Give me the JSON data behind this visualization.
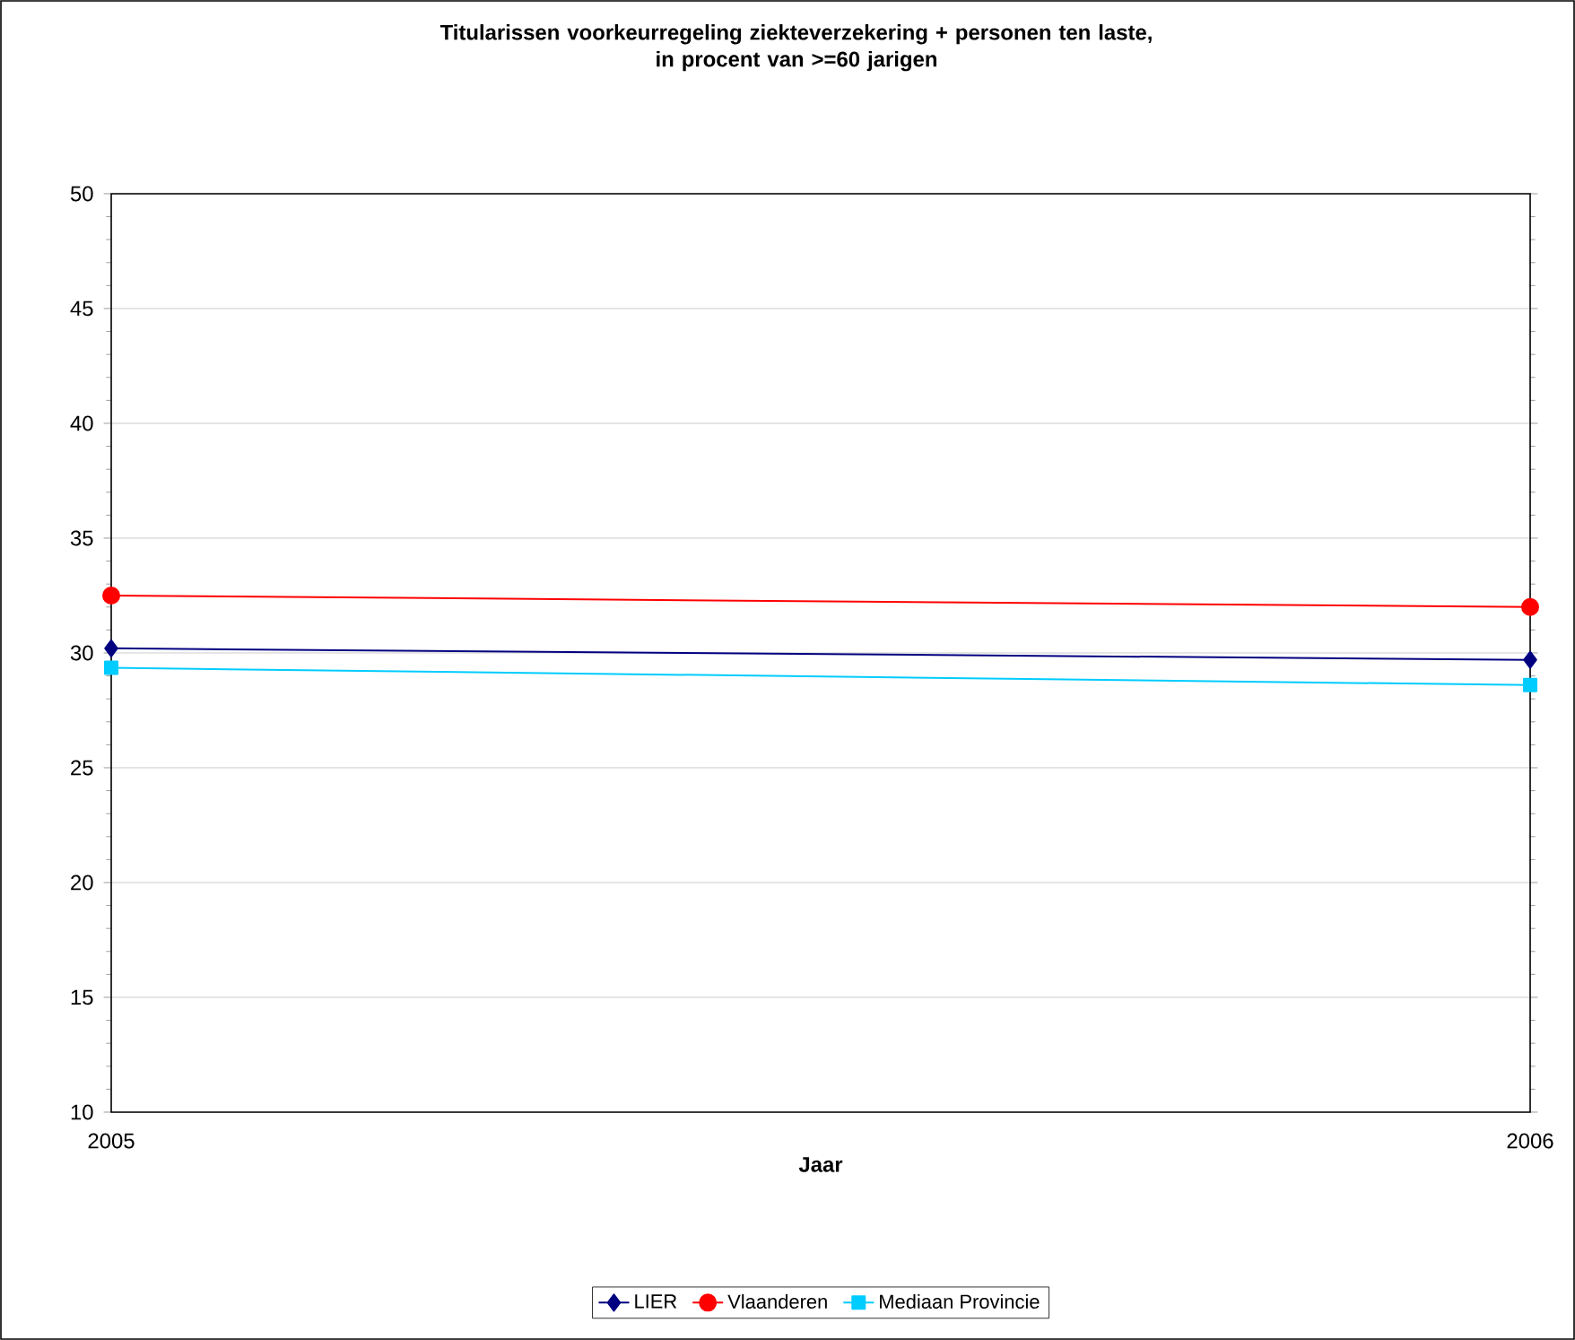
{
  "chart_data": {
    "type": "line",
    "title": "Titularissen voorkeurregeling ziekteverzekering + personen ten laste,\nin procent van >=60 jarigen",
    "xlabel": "Jaar",
    "x": [
      2005,
      2006
    ],
    "xlim": [
      2005,
      2006
    ],
    "xticks": [
      2005,
      2006
    ],
    "ylim": [
      10,
      50
    ],
    "yticks": [
      10,
      15,
      20,
      25,
      30,
      35,
      40,
      45,
      50
    ],
    "grid": "y",
    "legend": "bottom",
    "line_style": "solid",
    "series": [
      {
        "name": "LIER",
        "color": "#000080",
        "marker": "diamond",
        "values": [
          30.2,
          29.7
        ]
      },
      {
        "name": "Vlaanderen",
        "color": "#ff0000",
        "marker": "circle",
        "values": [
          32.5,
          32.0
        ]
      },
      {
        "name": "Mediaan Provincie",
        "color": "#00ccff",
        "marker": "square",
        "values": [
          29.35,
          28.6
        ]
      }
    ]
  }
}
